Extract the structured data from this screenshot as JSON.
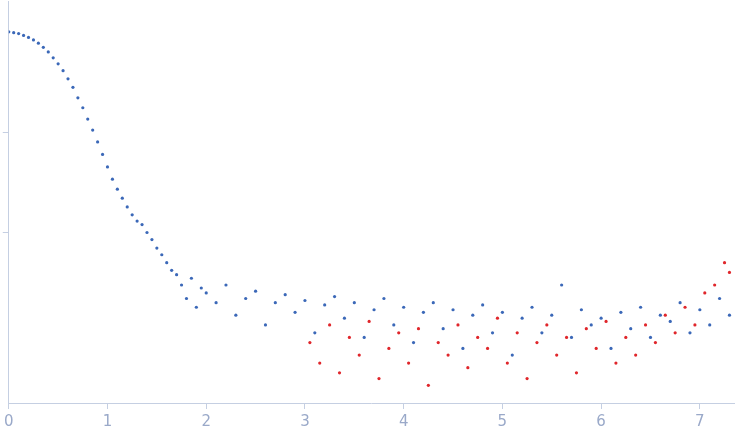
{
  "chart_data": {
    "type": "scatter",
    "log": "y",
    "grid": false,
    "tick_labels": "x",
    "xlim": [
      0,
      7.35
    ],
    "xticks": [
      0,
      1,
      2,
      3,
      4,
      5,
      6,
      7
    ],
    "ylim": [
      0.02,
      200
    ],
    "yticks": [
      1,
      10
    ],
    "series": [
      {
        "color": "#3b68b8",
        "marker": "circle",
        "x": [
          0.0,
          0.05,
          0.1,
          0.15,
          0.2,
          0.25,
          0.3,
          0.35,
          0.4,
          0.45,
          0.5,
          0.55,
          0.6,
          0.65,
          0.7,
          0.75,
          0.8,
          0.85,
          0.9,
          0.95,
          1.0,
          1.05,
          1.1,
          1.15,
          1.2,
          1.25,
          1.3,
          1.35,
          1.4,
          1.45,
          1.5,
          1.55,
          1.6,
          1.65,
          1.7,
          1.75,
          1.8,
          1.85,
          1.9,
          1.95,
          2.0,
          2.1,
          2.2,
          2.3,
          2.4,
          2.5,
          2.6,
          2.7,
          2.8,
          2.9,
          3.0,
          3.1,
          3.2,
          3.3,
          3.4,
          3.5,
          3.6,
          3.7,
          3.8,
          3.9,
          4.0,
          4.1,
          4.2,
          4.3,
          4.4,
          4.5,
          4.6,
          4.7,
          4.8,
          4.9,
          5.0,
          5.1,
          5.2,
          5.3,
          5.4,
          5.5,
          5.6,
          5.7,
          5.8,
          5.9,
          6.0,
          6.1,
          6.2,
          6.3,
          6.4,
          6.5,
          6.6,
          6.7,
          6.8,
          6.9,
          7.0,
          7.1,
          7.2,
          7.3
        ],
        "values": [
          100,
          98,
          96,
          92,
          88,
          83,
          77,
          70,
          63,
          55,
          48,
          41,
          34,
          28,
          22,
          17.5,
          13.5,
          10.5,
          8,
          6,
          4.5,
          3.4,
          2.7,
          2.2,
          1.8,
          1.5,
          1.3,
          1.2,
          1.0,
          0.85,
          0.7,
          0.6,
          0.5,
          0.42,
          0.38,
          0.3,
          0.22,
          0.35,
          0.18,
          0.28,
          0.25,
          0.2,
          0.3,
          0.15,
          0.22,
          0.26,
          0.12,
          0.2,
          0.24,
          0.16,
          0.21,
          0.1,
          0.19,
          0.23,
          0.14,
          0.2,
          0.09,
          0.17,
          0.22,
          0.12,
          0.18,
          0.08,
          0.16,
          0.2,
          0.11,
          0.17,
          0.07,
          0.15,
          0.19,
          0.1,
          0.16,
          0.06,
          0.14,
          0.18,
          0.1,
          0.15,
          0.3,
          0.09,
          0.17,
          0.12,
          0.14,
          0.07,
          0.16,
          0.11,
          0.18,
          0.09,
          0.15,
          0.13,
          0.2,
          0.1,
          0.17,
          0.12,
          0.22,
          0.15
        ]
      },
      {
        "color": "#e0262b",
        "marker": "circle",
        "x": [
          3.05,
          3.15,
          3.25,
          3.35,
          3.45,
          3.55,
          3.65,
          3.75,
          3.85,
          3.95,
          4.05,
          4.15,
          4.25,
          4.35,
          4.45,
          4.55,
          4.65,
          4.75,
          4.85,
          4.95,
          5.05,
          5.15,
          5.25,
          5.35,
          5.45,
          5.55,
          5.65,
          5.75,
          5.85,
          5.95,
          6.05,
          6.15,
          6.25,
          6.35,
          6.45,
          6.55,
          6.65,
          6.75,
          6.85,
          6.95,
          7.05,
          7.15,
          7.25,
          7.3
        ],
        "values": [
          0.08,
          0.05,
          0.12,
          0.04,
          0.09,
          0.06,
          0.13,
          0.035,
          0.07,
          0.1,
          0.05,
          0.11,
          0.03,
          0.08,
          0.06,
          0.12,
          0.045,
          0.09,
          0.07,
          0.14,
          0.05,
          0.1,
          0.035,
          0.08,
          0.12,
          0.06,
          0.09,
          0.04,
          0.11,
          0.07,
          0.13,
          0.05,
          0.09,
          0.06,
          0.12,
          0.08,
          0.15,
          0.1,
          0.18,
          0.12,
          0.25,
          0.3,
          0.5,
          0.4
        ]
      }
    ]
  }
}
